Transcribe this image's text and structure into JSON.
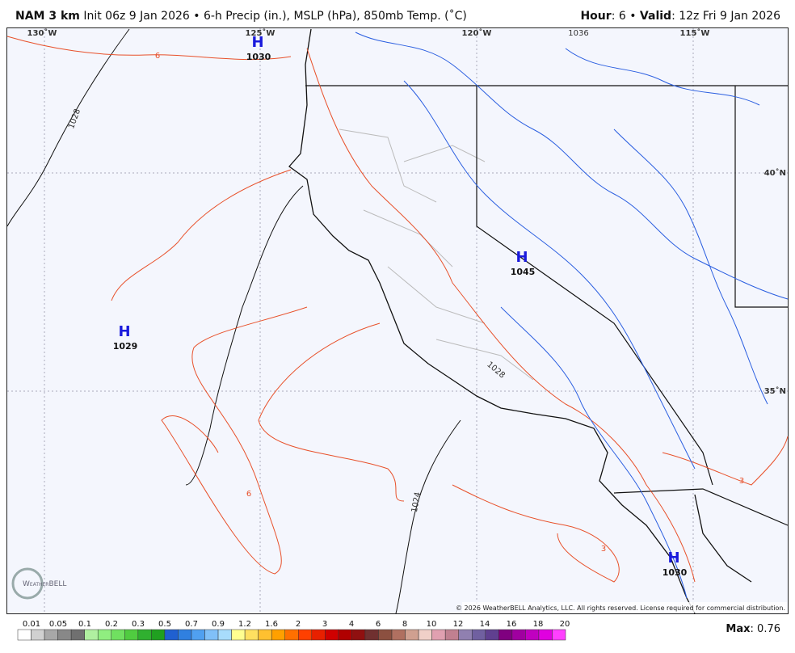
{
  "header": {
    "model": "NAM 3 km",
    "description": "Init 06z 9 Jan 2026 • 6-h Precip (in.), MSLP (hPa), 850mb Temp. (˚C)",
    "right": [
      {
        "text": "Hour",
        "bold": true
      },
      {
        "text": ": 6 • ",
        "bold": false
      },
      {
        "text": "Valid",
        "bold": true
      },
      {
        "text": ": 12z Fri 9 Jan 2026",
        "bold": false
      }
    ]
  },
  "map": {
    "longitude_labels": [
      "130˚W",
      "125˚W",
      "120˚W",
      "115˚W"
    ],
    "latitude_labels": [
      "40˚N",
      "35˚N"
    ],
    "highs": [
      {
        "label": "H",
        "pressure": "1030"
      },
      {
        "label": "H",
        "pressure": "1029"
      },
      {
        "label": "H",
        "pressure": "1045"
      },
      {
        "label": "H",
        "pressure": "1030"
      }
    ],
    "isobar_labels": [
      "1028",
      "1024",
      "1036",
      "1028"
    ],
    "isotherm_labels": [
      "6",
      "6",
      "3",
      "3"
    ],
    "logo": "WeatherBELL",
    "copyright": "© 2026 WeatherBELL Analytics, LLC. All rights reserved. License required for commercial distribution."
  },
  "colorbar": {
    "labels": [
      "0.01",
      "0.05",
      "0.1",
      "0.2",
      "0.3",
      "0.5",
      "0.7",
      "0.9",
      "1.2",
      "1.6",
      "2",
      "3",
      "4",
      "6",
      "8",
      "10",
      "12",
      "14",
      "16",
      "18",
      "20"
    ],
    "colors": [
      "#ffffff",
      "#d0d0d0",
      "#a8a8a8",
      "#888888",
      "#707070",
      "#b0f0a0",
      "#90ee80",
      "#70e060",
      "#50cc40",
      "#30b030",
      "#20a020",
      "#2060d0",
      "#3080e0",
      "#50a0f0",
      "#80c0f8",
      "#a8dcfc",
      "#ffff90",
      "#ffe060",
      "#ffc030",
      "#ffa000",
      "#ff7000",
      "#ff4000",
      "#e82000",
      "#d00000",
      "#b00000",
      "#901010",
      "#703030",
      "#8c5040",
      "#b07060",
      "#d0a090",
      "#f0d0c8",
      "#e0a0b0",
      "#c08090",
      "#9080b0",
      "#7060a0",
      "#604090",
      "#800080",
      "#a000a0",
      "#c000c0",
      "#e000e0",
      "#ff40ff"
    ]
  },
  "max": {
    "label": "Max",
    "value": "0.76"
  }
}
